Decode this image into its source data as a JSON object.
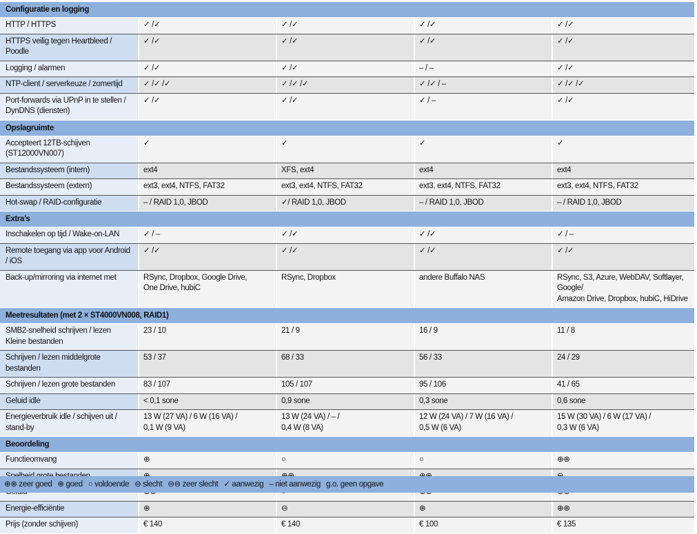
{
  "sections": [
    {
      "title": "Configuratie en logging",
      "rows": [
        {
          "label": "HTTP / HTTPS",
          "values": [
            "✓ /✓",
            "✓ /✓",
            "✓ /✓",
            "✓ /✓"
          ]
        },
        {
          "label": "HTTPS veilig tegen Heartbleed / Poodle",
          "values": [
            "✓ /✓",
            "✓ /✓",
            "✓ /✓",
            "✓ /✓"
          ]
        },
        {
          "label": "Logging / alarmen",
          "values": [
            "✓ /✓",
            "✓ /✓",
            "– / –",
            "✓ /✓"
          ]
        },
        {
          "label": "NTP-client / serverkeuze / zomertijd",
          "values": [
            "✓ /✓ /✓",
            "✓ /✓ /✓",
            "✓ /✓ / –",
            "✓ /✓ /✓"
          ]
        },
        {
          "label": "Port-forwards via UPnP in te stellen /\nDynDNS (diensten)",
          "values": [
            "✓ /✓",
            "✓ /✓",
            "✓ / –",
            "✓ /✓"
          ]
        }
      ]
    },
    {
      "title": "Opslagruimte",
      "rows": [
        {
          "label": "Accepteert 12TB-schijven (ST12000VN007)",
          "values": [
            "✓",
            "✓",
            "✓",
            "✓"
          ]
        },
        {
          "label": "Bestandssysteem (intern)",
          "values": [
            "ext4",
            "XFS, ext4",
            "ext4",
            "ext4"
          ]
        },
        {
          "label": "Bestandssysteem (extern)",
          "values": [
            "ext3, ext4, NTFS, FAT32",
            "ext3, ext4, NTFS, FAT32",
            "ext3, ext4, NTFS, FAT32",
            "ext3, ext4, NTFS, FAT32"
          ]
        },
        {
          "label": "Hot-swap / RAID-configuratie",
          "values": [
            "– / RAID 1,0, JBOD",
            "✓/ RAID 1,0, JBOD",
            "– / RAID 1,0, JBOD",
            "– / RAID 1,0, JBOD"
          ]
        }
      ]
    },
    {
      "title": "Extra’s",
      "rows": [
        {
          "label": "Inschakelen op tijd / Wake-on-LAN",
          "values": [
            "✓ / –",
            "✓ /✓",
            "✓ /✓",
            "✓ / –"
          ]
        },
        {
          "label": "Remote toegang via app voor Android / iOS",
          "values": [
            "✓ /✓",
            "✓ /✓",
            "✓ /✓",
            "✓ /✓"
          ]
        },
        {
          "label": "Back-up/mirroring via internet met",
          "values": [
            "RSync, Dropbox, Google Drive,\nOne Drive, hubiC",
            "RSync, Dropbox",
            "andere Buffalo NAS",
            "RSync, S3, Azure, WebDAV, Softlayer, Google/\nAmazon Drive, Dropbox, hubiC, HiDrive"
          ]
        }
      ]
    },
    {
      "title": "Meetresultaten (met 2 × ST4000VN008, RAID1)",
      "rows": [
        {
          "label": "SMB2-snelheid schrijven / lezen\nKleine bestanden",
          "values": [
            "23 / 10",
            "21 / 9",
            "16 / 9",
            "11 / 8"
          ]
        },
        {
          "label": "Schrijven / lezen middelgrote bestanden",
          "values": [
            "53 / 37",
            "68 / 33",
            "56 / 33",
            "24 / 29"
          ]
        },
        {
          "label": "Schrijven / lezen grote bestanden",
          "values": [
            "83 / 107",
            "105 / 107",
            "95 / 106",
            "41 / 65"
          ]
        },
        {
          "label": "Geluid idle",
          "values": [
            "< 0,1 sone",
            "0,9 sone",
            "0,3 sone",
            "0,6 sone"
          ]
        },
        {
          "label": "Energieverbruik idle / schijven uit /\nstand-by",
          "values": [
            "13 W (27 VA) / 6 W (16 VA) /\n 0,1 W (9 VA)",
            "13 W (24 VA) / – /\n0,4 W (8 VA)",
            "12 W (24 VA) / 7 W (16 VA) /\n0,5 W (6 VA)",
            "15 W (30 VA) / 6 W (17 VA) /\n0,3 W (6 VA)"
          ]
        }
      ]
    },
    {
      "title": "Beoordeling",
      "rows": [
        {
          "label": "Functieomvang",
          "values": [
            "⊕",
            "○",
            "○",
            "⊕⊕"
          ]
        },
        {
          "label": "Snelheid grote bestanden",
          "values": [
            "⊕",
            "⊕⊕",
            "⊕⊕",
            "⊖"
          ]
        },
        {
          "label": "Geluid",
          "values": [
            "⊕⊕",
            "○",
            "⊕⊕",
            "⊕⊕"
          ]
        },
        {
          "label": "Energie-efficiëntie",
          "values": [
            "⊕",
            "⊖",
            "⊕",
            "⊕⊕"
          ]
        },
        {
          "label": "Prijs (zonder schijven)",
          "values": [
            "€ 140",
            "€ 140",
            "€ 100",
            "€ 135"
          ]
        }
      ]
    }
  ],
  "legend": [
    "⊕⊕ zeer goed",
    "⊕ goed",
    "○ voldoende",
    "⊖ slecht",
    "⊖⊖ zeer slecht",
    "✓ aanwezig",
    "– niet aanwezig",
    "g.o. geen opgave"
  ],
  "colors": {
    "section_header": "#8db0dc",
    "label_light": "#e8eef8",
    "label_dark": "#cfddf1",
    "cell_light": "#f3f3f3",
    "cell_dark": "#e4e4e4"
  }
}
